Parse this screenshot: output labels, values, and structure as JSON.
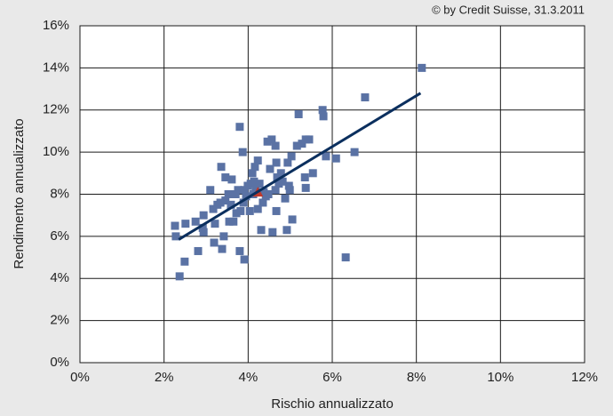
{
  "chart_data": {
    "type": "scatter",
    "source": "© by Credit Suisse, 31.3.2011",
    "x_label": "Rischio annualizzato",
    "y_label": "Rendimento annualizzato",
    "xlim": [
      0,
      12
    ],
    "ylim": [
      0,
      16
    ],
    "xticks": [
      {
        "value": 0,
        "label": "0%"
      },
      {
        "value": 2,
        "label": "2%"
      },
      {
        "value": 4,
        "label": "4%"
      },
      {
        "value": 6,
        "label": "6%"
      },
      {
        "value": 8,
        "label": "8%"
      },
      {
        "value": 10,
        "label": "10%"
      },
      {
        "value": 12,
        "label": "12%"
      }
    ],
    "yticks": [
      {
        "value": 0,
        "label": "0%"
      },
      {
        "value": 2,
        "label": "2%"
      },
      {
        "value": 4,
        "label": "4%"
      },
      {
        "value": 6,
        "label": "6%"
      },
      {
        "value": 8,
        "label": "8%"
      },
      {
        "value": 10,
        "label": "10%"
      },
      {
        "value": 12,
        "label": "12%"
      },
      {
        "value": 14,
        "label": "14%"
      },
      {
        "value": 16,
        "label": "16%"
      }
    ],
    "grid": true,
    "series": [
      {
        "color": "#5a72a4",
        "marker": "square",
        "x": [
          2.26,
          2.28,
          2.37,
          2.49,
          2.51,
          2.75,
          2.81,
          2.92,
          2.94,
          2.94,
          3.1,
          3.17,
          3.19,
          3.21,
          3.27,
          3.34,
          3.36,
          3.38,
          3.42,
          3.46,
          3.46,
          3.53,
          3.55,
          3.59,
          3.61,
          3.65,
          3.7,
          3.72,
          3.76,
          3.8,
          3.8,
          3.82,
          3.87,
          3.89,
          3.91,
          3.91,
          3.95,
          3.99,
          4.04,
          4.06,
          4.1,
          4.12,
          4.14,
          4.16,
          4.18,
          4.23,
          4.23,
          4.27,
          4.31,
          4.35,
          4.37,
          4.42,
          4.46,
          4.48,
          4.52,
          4.56,
          4.58,
          4.65,
          4.65,
          4.67,
          4.67,
          4.69,
          4.73,
          4.78,
          4.82,
          4.88,
          4.92,
          4.94,
          4.97,
          4.99,
          5.03,
          5.05,
          5.16,
          5.2,
          5.28,
          5.35,
          5.37,
          5.37,
          5.45,
          5.54,
          5.77,
          5.79,
          5.85,
          6.09,
          6.32,
          6.53,
          6.78,
          8.13
        ],
        "values": [
          6.5,
          6.0,
          4.1,
          4.8,
          6.6,
          6.7,
          5.3,
          6.4,
          7.0,
          6.2,
          8.2,
          7.3,
          5.7,
          6.6,
          7.5,
          7.6,
          9.3,
          5.4,
          6.0,
          8.8,
          7.7,
          8.0,
          6.7,
          7.5,
          8.7,
          6.7,
          8.0,
          7.1,
          8.2,
          11.2,
          5.3,
          7.2,
          10.0,
          7.6,
          4.9,
          8.2,
          7.9,
          8.4,
          7.2,
          8.5,
          9.0,
          8.0,
          8.6,
          9.3,
          8.3,
          9.6,
          7.3,
          8.5,
          6.3,
          7.6,
          8.1,
          7.9,
          10.5,
          8.0,
          9.2,
          10.6,
          6.2,
          10.3,
          8.2,
          9.5,
          7.2,
          8.8,
          8.5,
          9.0,
          8.6,
          7.8,
          6.3,
          9.5,
          8.4,
          8.2,
          9.8,
          6.8,
          10.3,
          11.8,
          10.4,
          8.8,
          10.6,
          8.3,
          10.6,
          9.0,
          12.0,
          11.7,
          9.8,
          9.7,
          5.0,
          10.0,
          12.6,
          14.0
        ]
      },
      {
        "color": "#c0392b",
        "marker": "triangle",
        "x": [
          4.23
        ],
        "values": [
          8.1
        ]
      }
    ],
    "lines": [
      {
        "color": "#0b2f5e",
        "x": [
          2.35,
          8.1
        ],
        "values": [
          5.85,
          12.8
        ]
      }
    ]
  }
}
